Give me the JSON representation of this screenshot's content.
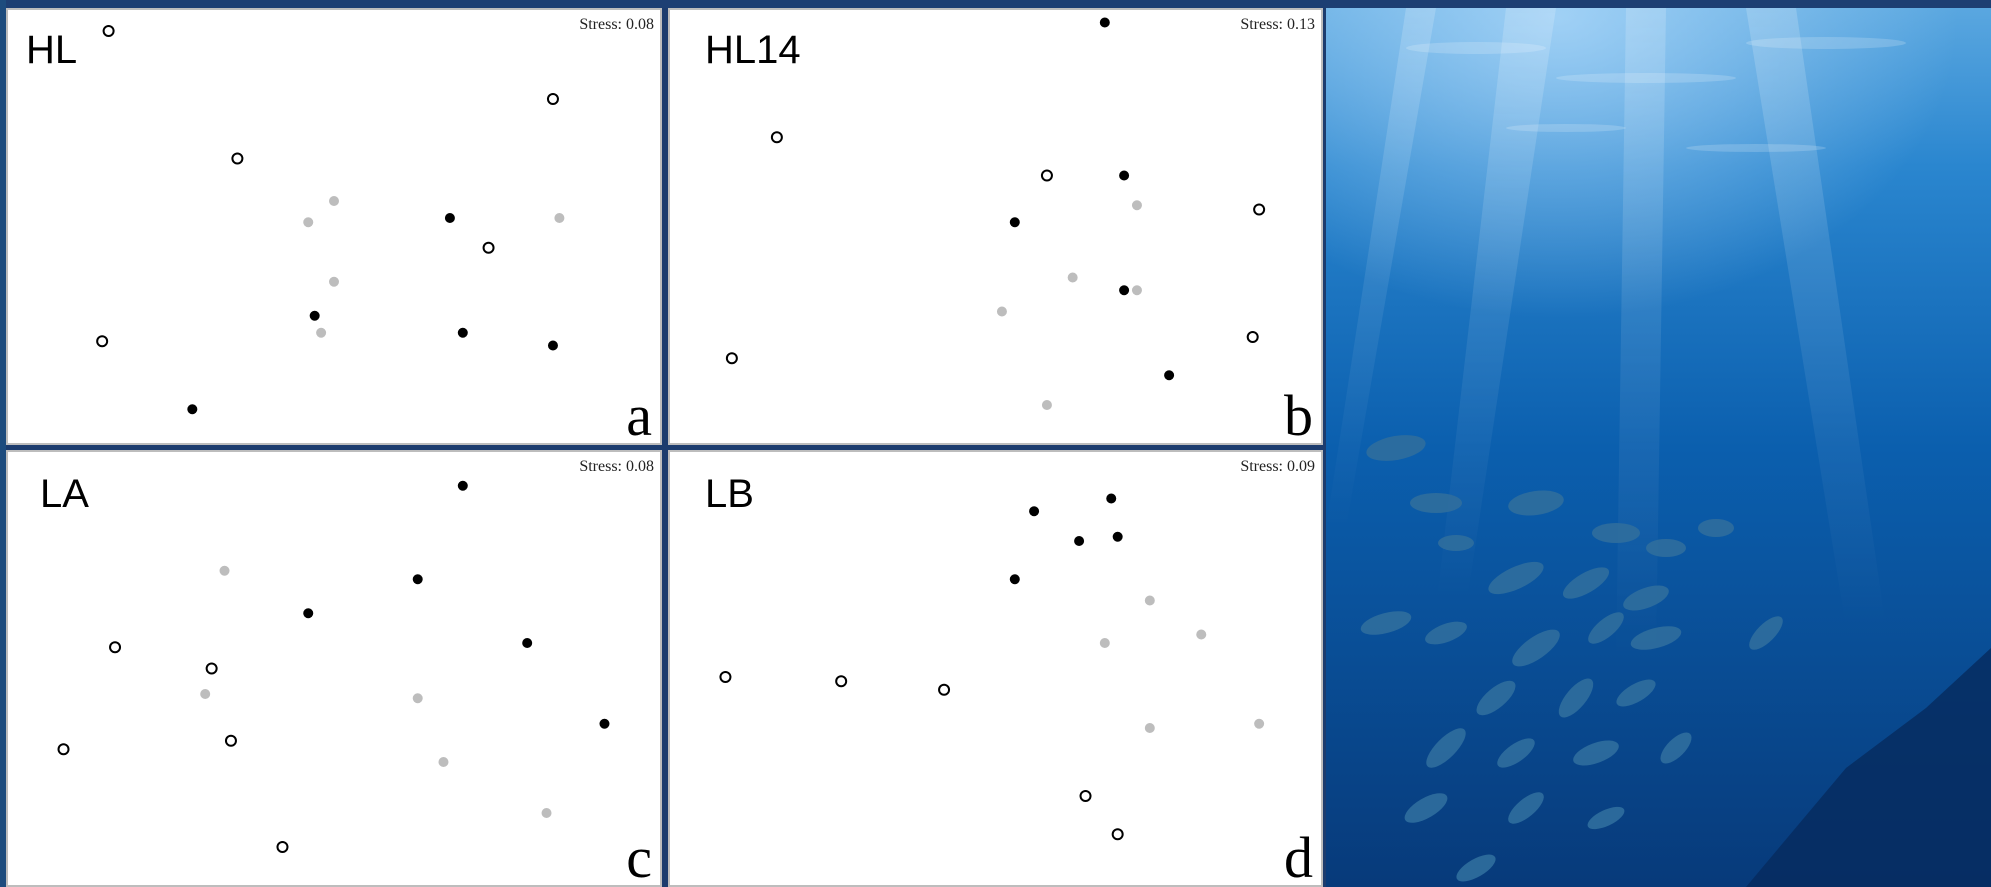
{
  "chart_data": [
    {
      "type": "scatter",
      "panel_label": "HL",
      "stress_text": "Stress: 0.08",
      "corner_letter": "a",
      "xlim": [
        0,
        1
      ],
      "ylim": [
        0,
        1
      ],
      "series": [
        {
          "style": "open-circle",
          "color": "#000000",
          "x": [
            0.15,
            0.35,
            0.84,
            0.74,
            0.14
          ],
          "y": [
            0.96,
            0.66,
            0.8,
            0.45,
            0.23
          ]
        },
        {
          "style": "filled",
          "color": "#000000",
          "x": [
            0.68,
            0.47,
            0.7,
            0.84,
            0.28
          ],
          "y": [
            0.52,
            0.29,
            0.25,
            0.22,
            0.07
          ]
        },
        {
          "style": "filled",
          "color": "#bdbdbd",
          "x": [
            0.5,
            0.46,
            0.85,
            0.5,
            0.48
          ],
          "y": [
            0.56,
            0.51,
            0.52,
            0.37,
            0.25
          ]
        }
      ]
    },
    {
      "type": "scatter",
      "panel_label": "HL14",
      "stress_text": "Stress: 0.13",
      "corner_letter": "b",
      "xlim": [
        0,
        1
      ],
      "ylim": [
        0,
        1
      ],
      "series": [
        {
          "style": "open-circle",
          "color": "#000000",
          "x": [
            0.16,
            0.58,
            0.91,
            0.9,
            0.09
          ],
          "y": [
            0.71,
            0.62,
            0.54,
            0.24,
            0.19
          ]
        },
        {
          "style": "filled",
          "color": "#000000",
          "x": [
            0.67,
            0.7,
            0.53,
            0.7,
            0.77
          ],
          "y": [
            0.98,
            0.62,
            0.51,
            0.35,
            0.15
          ]
        },
        {
          "style": "filled",
          "color": "#bdbdbd",
          "x": [
            0.72,
            0.62,
            0.72,
            0.51,
            0.58
          ],
          "y": [
            0.55,
            0.38,
            0.35,
            0.3,
            0.08
          ]
        }
      ]
    },
    {
      "type": "scatter",
      "panel_label": "LA",
      "stress_text": "Stress: 0.08",
      "corner_letter": "c",
      "xlim": [
        0,
        1
      ],
      "ylim": [
        0,
        1
      ],
      "series": [
        {
          "style": "open-circle",
          "color": "#000000",
          "x": [
            0.16,
            0.31,
            0.34,
            0.08,
            0.42
          ],
          "y": [
            0.55,
            0.5,
            0.33,
            0.31,
            0.08
          ]
        },
        {
          "style": "filled",
          "color": "#000000",
          "x": [
            0.7,
            0.63,
            0.46,
            0.8,
            0.92
          ],
          "y": [
            0.93,
            0.71,
            0.63,
            0.56,
            0.37
          ]
        },
        {
          "style": "filled",
          "color": "#bdbdbd",
          "x": [
            0.33,
            0.3,
            0.63,
            0.67,
            0.83
          ],
          "y": [
            0.73,
            0.44,
            0.43,
            0.28,
            0.16
          ]
        }
      ]
    },
    {
      "type": "scatter",
      "panel_label": "LB",
      "stress_text": "Stress: 0.09",
      "corner_letter": "d",
      "xlim": [
        0,
        1
      ],
      "ylim": [
        0,
        1
      ],
      "series": [
        {
          "style": "open-circle",
          "color": "#000000",
          "x": [
            0.08,
            0.26,
            0.42,
            0.64,
            0.69
          ],
          "y": [
            0.48,
            0.47,
            0.45,
            0.2,
            0.11
          ]
        },
        {
          "style": "filled",
          "color": "#000000",
          "x": [
            0.68,
            0.56,
            0.63,
            0.69,
            0.53
          ],
          "y": [
            0.9,
            0.87,
            0.8,
            0.81,
            0.71
          ]
        },
        {
          "style": "filled",
          "color": "#bdbdbd",
          "x": [
            0.74,
            0.82,
            0.67,
            0.74,
            0.91
          ],
          "y": [
            0.66,
            0.58,
            0.56,
            0.36,
            0.37
          ]
        }
      ]
    }
  ],
  "photo": {
    "subject-icon": "underwater-fish-school",
    "water_color": "#0a5fa8"
  }
}
